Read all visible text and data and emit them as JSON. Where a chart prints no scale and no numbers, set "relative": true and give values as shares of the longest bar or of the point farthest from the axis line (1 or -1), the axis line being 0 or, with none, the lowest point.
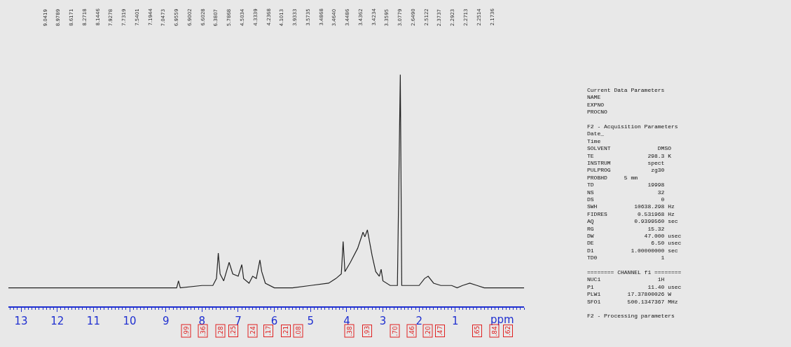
{
  "chart_data": {
    "type": "line",
    "xlabel": "ppm",
    "relative": true,
    "xlim": [
      13.35,
      -0.9
    ],
    "xticks": [
      13,
      12,
      11,
      10,
      9,
      8,
      7,
      6,
      5,
      4,
      3,
      2,
      1
    ],
    "x": [
      13.35,
      9.0,
      8.7,
      8.65,
      8.6,
      8.0,
      7.7,
      7.6,
      7.55,
      7.5,
      7.4,
      7.25,
      7.15,
      7.0,
      6.9,
      6.85,
      6.7,
      6.6,
      6.5,
      6.4,
      6.35,
      6.25,
      6.0,
      5.8,
      5.5,
      5.0,
      4.5,
      4.3,
      4.15,
      4.1,
      4.05,
      3.9,
      3.7,
      3.55,
      3.5,
      3.43,
      3.3,
      3.2,
      3.1,
      3.05,
      3.0,
      2.8,
      2.6,
      2.52,
      2.48,
      2.2,
      2.0,
      1.85,
      1.75,
      1.6,
      1.4,
      1.1,
      0.95,
      0.8,
      0.6,
      0.4,
      0.2,
      -0.9
    ],
    "series": [
      {
        "color": "#222222",
        "values": [
          0.08,
          0.08,
          0.08,
          0.11,
          0.08,
          0.09,
          0.09,
          0.12,
          0.23,
          0.14,
          0.11,
          0.19,
          0.14,
          0.13,
          0.18,
          0.12,
          0.1,
          0.13,
          0.12,
          0.2,
          0.15,
          0.1,
          0.08,
          0.08,
          0.08,
          0.09,
          0.1,
          0.12,
          0.14,
          0.28,
          0.15,
          0.19,
          0.25,
          0.32,
          0.3,
          0.33,
          0.22,
          0.15,
          0.13,
          0.16,
          0.11,
          0.09,
          0.09,
          1.0,
          0.09,
          0.09,
          0.09,
          0.12,
          0.13,
          0.1,
          0.09,
          0.09,
          0.08,
          0.09,
          0.1,
          0.09,
          0.08,
          0.08
        ]
      }
    ],
    "annotations": [
      "9.0419",
      "8.9789",
      "8.6171",
      "8.2718",
      "8.1446",
      "7.9278",
      "7.7319",
      "7.5401",
      "7.1944",
      "7.0473",
      "6.9559",
      "6.9002",
      "6.6028",
      "6.3807",
      "5.7868",
      "4.5034",
      "4.3339",
      "4.2368",
      "4.1013",
      "3.9333",
      "3.5735",
      "3.4868",
      "3.4640",
      "3.4486",
      "3.4362",
      "3.4234",
      "3.3595",
      "3.0779",
      "2.6490",
      "2.5122",
      "2.3737",
      "2.2923",
      "2.2713",
      "2.2514",
      "2.1736",
      ".99",
      ".36",
      ".28",
      ".25",
      ".24",
      ".17",
      ".21",
      ".08",
      ".38",
      ".93",
      ".70",
      ".46",
      ".20",
      ".47",
      ".65",
      ".84",
      ".62",
      "Current Data Parameters\nNAME\nEXPNO\nPROCNO\n\nF2 - Acquisition Parameters\nDate_\nTime\nSOLVENT              DMSO\nTE                298.3 K\nINSTRUM           spect\nPULPROG            zg30\nPROBHD     5 mm\nTD                19998\nNS                   32\nDS                    0\nSWH           10638.298 Hz\nFIDRES         0.531968 Hz\nAQ            0.9399560 sec\nRG                15.32\nDW               47.000 usec\nDE                 6.50 usec\nD1           1.00000000 sec\nTD0                   1\n\n======== CHANNEL f1 ========\nNUC1                 1H\nP1                11.40 usec\nPLW1        17.37800026 W\nSFO1        500.1347367 MHz\n\nF2 - Processing parameters"
    ]
  }
}
